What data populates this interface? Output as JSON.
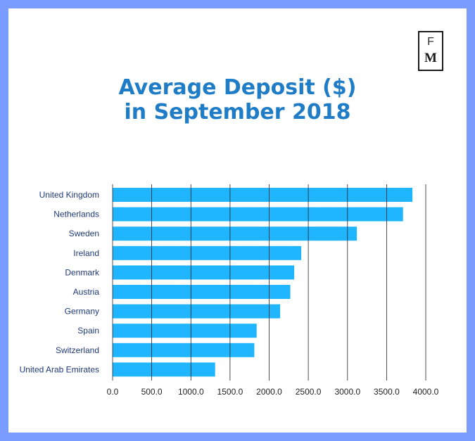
{
  "logo": {
    "top_letter": "F",
    "bottom_letter": "M"
  },
  "colors": {
    "background": "#7b9cff",
    "title": "#1f7cc7",
    "bar": "#1fb6ff",
    "label": "#1f3a7a",
    "grid": "#222222"
  },
  "chart_data": {
    "type": "bar",
    "orientation": "horizontal",
    "title": [
      "Average Deposit ($)",
      "in September 2018"
    ],
    "categories": [
      "United Kingdom",
      "Netherlands",
      "Sweden",
      "Ireland",
      "Denmark",
      "Austria",
      "Germany",
      "Spain",
      "Switzerland",
      "United Arab Emirates"
    ],
    "values": [
      3830,
      3710,
      3120,
      2410,
      2320,
      2270,
      2140,
      1840,
      1810,
      1310
    ],
    "xlim": [
      0,
      4000
    ],
    "x_ticks": [
      "0.0",
      "500.0",
      "1000.0",
      "1500.0",
      "2000.0",
      "2500.0",
      "3000.0",
      "3500.0",
      "4000.0"
    ],
    "tick_values": [
      0,
      500,
      1000,
      1500,
      2000,
      2500,
      3000,
      3500,
      4000
    ],
    "grid": true,
    "legend": "none"
  }
}
